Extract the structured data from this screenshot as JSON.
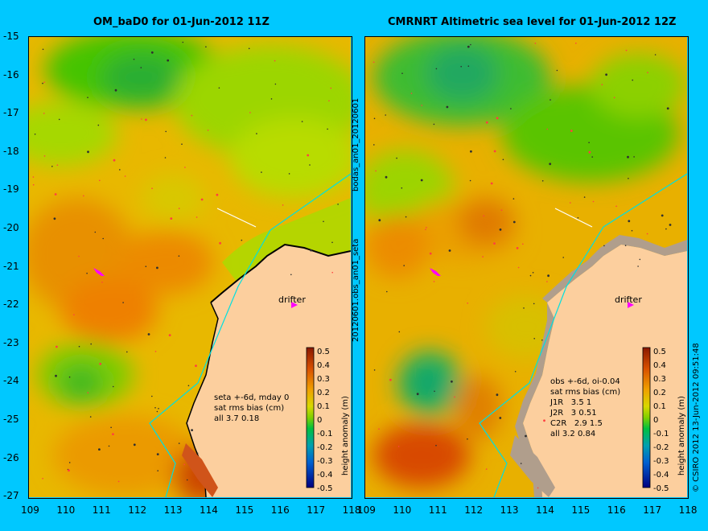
{
  "panels": [
    {
      "title": "OM_baD0 for 01-Jun-2012 11Z",
      "info_lines": [
        "seta +-6d, mday 0",
        "sat rms bias (cm)",
        "all 3.7 0.18"
      ],
      "drifter_label": "drifter",
      "colorbar_label": "height anomaly (m)"
    },
    {
      "title": "CMRNRT Altimetric sea level  for 01-Jun-2012 12Z",
      "info_lines": [
        "obs +-6d, oi-0.04",
        "sat rms bias (cm)",
        "J1R   3.5 1",
        "J2R   3 0.51",
        "C2R   2.9 1.5",
        "all 3.2 0.84"
      ],
      "drifter_label": "drifter",
      "colorbar_label": "height anomaly (m)"
    }
  ],
  "side_label_top": "bodas_an01_20120601",
  "side_label_bottom": "20120601.obs_an01_seta",
  "copyright": "© CSIRO 2012   13-Jun-2012 09:51:48",
  "y_ticks": [
    "-15",
    "-16",
    "-17",
    "-18",
    "-19",
    "-20",
    "-21",
    "-22",
    "-23",
    "-24",
    "-25",
    "-26",
    "-27"
  ],
  "x_ticks": [
    "109",
    "110",
    "111",
    "112",
    "113",
    "114",
    "115",
    "116",
    "117",
    "118"
  ],
  "colorbar_ticks": [
    "0.5",
    "0.4",
    "0.3",
    "0.2",
    "0.1",
    "0",
    "-0.1",
    "-0.2",
    "-0.3",
    "-0.4",
    "-0.5"
  ],
  "colors": {
    "background": "#00c8ff",
    "land": "#fccf9e",
    "coast_line": "#00e0e0",
    "drifter": "#ff00ff"
  }
}
